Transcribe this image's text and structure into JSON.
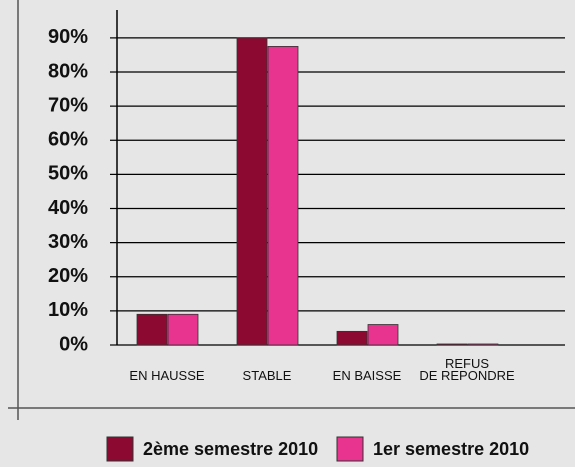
{
  "chart_data": {
    "type": "bar",
    "categories": [
      "EN HAUSSE",
      "STABLE",
      "EN BAISSE",
      "REFUS\nDE REPONDRE"
    ],
    "series": [
      {
        "name": "2ème semestre 2010",
        "color": "#8c0a32",
        "values": [
          9,
          90,
          4,
          0.3
        ]
      },
      {
        "name": "1er semestre 2010",
        "color": "#e8338f",
        "values": [
          9,
          87.5,
          6,
          0.3
        ]
      }
    ],
    "ylim": [
      0,
      97
    ],
    "yticks": [
      {
        "value": 0,
        "label": "0%"
      },
      {
        "value": 10,
        "label": "10%"
      },
      {
        "value": 20,
        "label": "20%"
      },
      {
        "value": 30,
        "label": "30%"
      },
      {
        "value": 40,
        "label": "40%"
      },
      {
        "value": 50,
        "label": "50%"
      },
      {
        "value": 60,
        "label": "60%"
      },
      {
        "value": 70,
        "label": "70%"
      },
      {
        "value": 80,
        "label": "80%"
      },
      {
        "value": 90,
        "label": "90%"
      }
    ],
    "grid": true,
    "legend": "bottom"
  }
}
